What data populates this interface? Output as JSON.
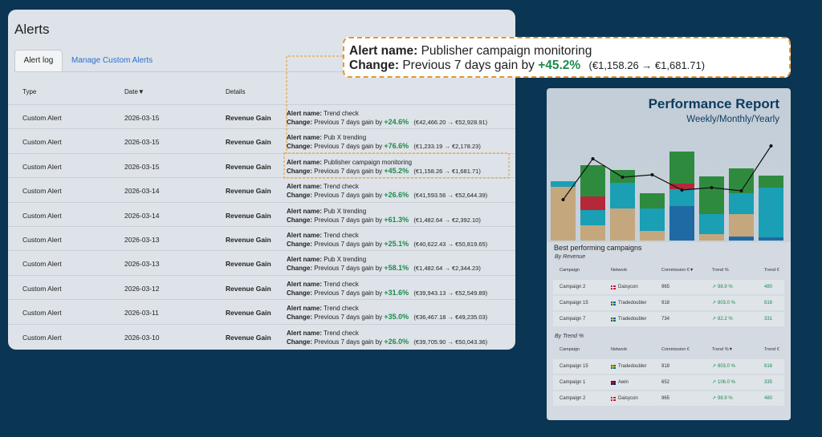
{
  "alerts": {
    "title": "Alerts",
    "tabs": [
      "Alert log",
      "Manage Custom Alerts"
    ],
    "columns": [
      "Type",
      "Date▼",
      "Details"
    ],
    "name_label": "Alert name:",
    "change_label": "Change:",
    "change_text": "Previous 7 days gain by",
    "rows": [
      {
        "type": "Custom Alert",
        "date": "2026-03-15",
        "details": "Revenue Gain",
        "name": "Trend check",
        "gain": "+24.6%",
        "range": "(€42,466.20 → €52,928.91)"
      },
      {
        "type": "Custom Alert",
        "date": "2026-03-15",
        "details": "Revenue Gain",
        "name": "Pub X trending",
        "gain": "+76.6%",
        "range": "(€1,233.19 → €2,178.23)"
      },
      {
        "type": "Custom Alert",
        "date": "2026-03-15",
        "details": "Revenue Gain",
        "name": "Publisher campaign monitoring",
        "gain": "+45.2%",
        "range": "(€1,158.26 → €1,681.71)"
      },
      {
        "type": "Custom Alert",
        "date": "2026-03-14",
        "details": "Revenue Gain",
        "name": "Trend check",
        "gain": "+26.6%",
        "range": "(€41,593.56 → €52,644.39)"
      },
      {
        "type": "Custom Alert",
        "date": "2026-03-14",
        "details": "Revenue Gain",
        "name": "Pub X trending",
        "gain": "+61.3%",
        "range": "(€1,482.64 → €2,392.10)"
      },
      {
        "type": "Custom Alert",
        "date": "2026-03-13",
        "details": "Revenue Gain",
        "name": "Trend check",
        "gain": "+25.1%",
        "range": "(€40,622.43 → €50,819.65)"
      },
      {
        "type": "Custom Alert",
        "date": "2026-03-13",
        "details": "Revenue Gain",
        "name": "Pub X trending",
        "gain": "+58.1%",
        "range": "(€1,482.64 → €2,344.23)"
      },
      {
        "type": "Custom Alert",
        "date": "2026-03-12",
        "details": "Revenue Gain",
        "name": "Trend check",
        "gain": "+31.6%",
        "range": "(€39,943.13 → €52,549.89)"
      },
      {
        "type": "Custom Alert",
        "date": "2026-03-11",
        "details": "Revenue Gain",
        "name": "Trend check",
        "gain": "+35.0%",
        "range": "(€36,467.18 → €49,235.03)"
      },
      {
        "type": "Custom Alert",
        "date": "2026-03-10",
        "details": "Revenue Gain",
        "name": "Trend check",
        "gain": "+26.0%",
        "range": "(€39,705.90 → €50,043.36)"
      }
    ]
  },
  "report": {
    "title": "Performance Report",
    "subtitle": "Weekly/Monthly/Yearly",
    "section": "Best performing campaigns",
    "chart_data": {
      "type": "bar",
      "stacked": true,
      "ylim": [
        0,
        140
      ],
      "series": [
        {
          "color": "#1f6aa5",
          "values": [
            0,
            0,
            0,
            0,
            43,
            0,
            5,
            4
          ]
        },
        {
          "color": "#c4a77d",
          "values": [
            67,
            19,
            40,
            12,
            0,
            8,
            28,
            0
          ]
        },
        {
          "color": "#1a9fb5",
          "values": [
            7,
            19,
            32,
            28,
            21,
            25,
            26,
            62
          ]
        },
        {
          "color": "#b5283a",
          "values": [
            0,
            17,
            0,
            0,
            7,
            0,
            0,
            0
          ]
        },
        {
          "color": "#2e8b3e",
          "values": [
            0,
            39,
            16,
            19,
            40,
            47,
            31,
            15
          ]
        }
      ],
      "line": {
        "color": "#111111",
        "values": [
          51,
          102,
          79,
          82,
          63,
          66,
          62,
          118
        ]
      }
    },
    "tables": [
      {
        "title": "By Revenue",
        "columns": [
          "Campaign",
          "Network",
          "Commission €▼",
          "Trend %",
          "Trend €"
        ],
        "rows": [
          [
            "Campaign 2",
            "Daisycon",
            "965",
            "98.9 %",
            "480"
          ],
          [
            "Campaign 15",
            "Tradedoubler",
            "918",
            "803.0 %",
            "816"
          ],
          [
            "Campaign 7",
            "Tradedoubler",
            "734",
            "82.2 %",
            "331"
          ]
        ]
      },
      {
        "title": "By Trend %",
        "columns": [
          "Campaign",
          "Network",
          "Commission €",
          "Trend %▼",
          "Trend €"
        ],
        "rows": [
          [
            "Campaign 15",
            "Tradedoubler",
            "918",
            "803.0 %",
            "816"
          ],
          [
            "Campaign 1",
            "Awin",
            "652",
            "106.0 %",
            "335"
          ],
          [
            "Campaign 2",
            "Daisycon",
            "965",
            "98.9 %",
            "480"
          ]
        ]
      }
    ]
  }
}
